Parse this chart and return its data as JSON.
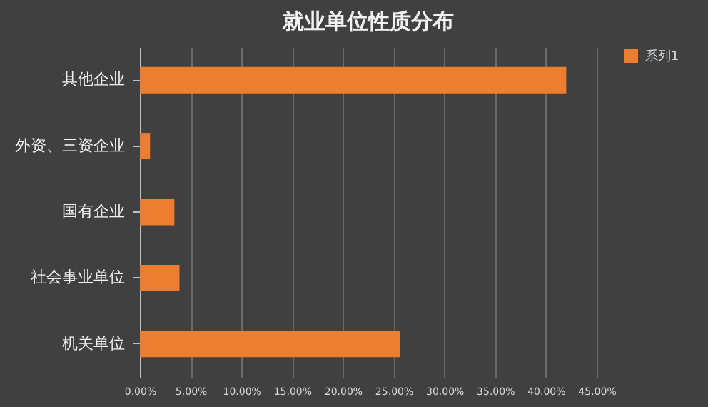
{
  "chart_data": {
    "type": "bar",
    "orientation": "horizontal",
    "title": "就业单位性质分布",
    "categories": [
      "其他企业",
      "外资、三资企业",
      "国有企业",
      "社会事业单位",
      "机关单位"
    ],
    "series": [
      {
        "name": "系列1",
        "color": "#ed7d31",
        "values": [
          42.0,
          1.0,
          3.4,
          3.9,
          25.6
        ]
      }
    ],
    "xlim": [
      0,
      45
    ],
    "xticks": [
      {
        "value": 0,
        "label": "0.00%"
      },
      {
        "value": 5,
        "label": "5.00%"
      },
      {
        "value": 10,
        "label": "10.00%"
      },
      {
        "value": 15,
        "label": "15.00%"
      },
      {
        "value": 20,
        "label": "20.00%"
      },
      {
        "value": 25,
        "label": "25.00%"
      },
      {
        "value": 30,
        "label": "30.00%"
      },
      {
        "value": 35,
        "label": "35.00%"
      },
      {
        "value": 40,
        "label": "40.00%"
      },
      {
        "value": 45,
        "label": "45.00%"
      }
    ],
    "grid": "x",
    "legend": "right"
  }
}
